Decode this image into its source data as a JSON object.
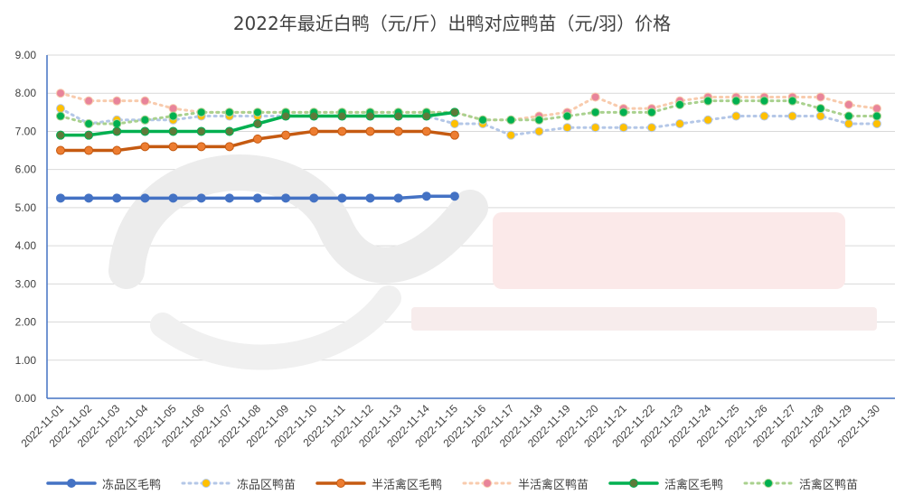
{
  "chart_data": {
    "type": "line",
    "title": "2022年最近白鸭（元/斤）出鸭对应鸭苗（元/羽）价格",
    "categories": [
      "2022-11-01",
      "2022-11-02",
      "2022-11-03",
      "2022-11-04",
      "2022-11-05",
      "2022-11-06",
      "2022-11-07",
      "2022-11-08",
      "2022-11-09",
      "2022-11-10",
      "2022-11-11",
      "2022-11-12",
      "2022-11-13",
      "2022-11-14",
      "2022-11-15",
      "2022-11-16",
      "2022-11-17",
      "2022-11-18",
      "2022-11-19",
      "2022-11-20",
      "2022-11-21",
      "2022-11-22",
      "2022-11-23",
      "2022-11-24",
      "2022-11-25",
      "2022-11-26",
      "2022-11-27",
      "2022-11-28",
      "2022-11-29",
      "2022-11-30"
    ],
    "ylim": [
      0,
      9
    ],
    "yticks": [
      "0.00",
      "1.00",
      "2.00",
      "3.00",
      "4.00",
      "5.00",
      "6.00",
      "7.00",
      "8.00",
      "9.00"
    ],
    "grid": true,
    "legend_position": "bottom",
    "series": [
      {
        "name": "冻品区毛鸭",
        "style": "solid",
        "color": "#4472c4",
        "marker": "#4472c4",
        "values": [
          5.25,
          5.25,
          5.25,
          5.25,
          5.25,
          5.25,
          5.25,
          5.25,
          5.25,
          5.25,
          5.25,
          5.25,
          5.25,
          5.3,
          5.3,
          null,
          null,
          null,
          null,
          null,
          null,
          null,
          null,
          null,
          null,
          null,
          null,
          null,
          null,
          null
        ]
      },
      {
        "name": "冻品区鸭苗",
        "style": "dotted",
        "color": "#b4c7e7",
        "marker": "#ffc000",
        "values": [
          7.6,
          7.2,
          7.3,
          7.3,
          7.3,
          7.4,
          7.4,
          7.4,
          7.4,
          7.4,
          7.4,
          7.4,
          7.4,
          7.4,
          7.2,
          7.2,
          6.9,
          7.0,
          7.1,
          7.1,
          7.1,
          7.1,
          7.2,
          7.3,
          7.4,
          7.4,
          7.4,
          7.4,
          7.2,
          7.2
        ]
      },
      {
        "name": "半活禽区毛鸭",
        "style": "solid",
        "color": "#c55a11",
        "marker": "#ed7d31",
        "values": [
          6.5,
          6.5,
          6.5,
          6.6,
          6.6,
          6.6,
          6.6,
          6.8,
          6.9,
          7.0,
          7.0,
          7.0,
          7.0,
          7.0,
          6.9,
          null,
          null,
          null,
          null,
          null,
          null,
          null,
          null,
          null,
          null,
          null,
          null,
          null,
          null,
          null
        ]
      },
      {
        "name": "半活禽区鸭苗",
        "style": "dotted",
        "color": "#f8cbad",
        "marker": "#e8849a",
        "values": [
          8.0,
          7.8,
          7.8,
          7.8,
          7.6,
          7.5,
          7.5,
          7.5,
          7.5,
          7.5,
          7.5,
          7.5,
          7.5,
          7.5,
          7.5,
          7.3,
          7.3,
          7.4,
          7.5,
          7.9,
          7.6,
          7.6,
          7.8,
          7.9,
          7.9,
          7.9,
          7.9,
          7.9,
          7.7,
          7.6
        ]
      },
      {
        "name": "活禽区毛鸭",
        "style": "solid",
        "color": "#00b050",
        "marker": "#5e7a3a",
        "values": [
          6.9,
          6.9,
          7.0,
          7.0,
          7.0,
          7.0,
          7.0,
          7.2,
          7.4,
          7.4,
          7.4,
          7.4,
          7.4,
          7.4,
          7.5,
          null,
          null,
          null,
          null,
          null,
          null,
          null,
          null,
          null,
          null,
          null,
          null,
          null,
          null,
          null
        ]
      },
      {
        "name": "活禽区鸭苗",
        "style": "dotted",
        "color": "#a9d18e",
        "marker": "#00b050",
        "values": [
          7.4,
          7.2,
          7.2,
          7.3,
          7.4,
          7.5,
          7.5,
          7.5,
          7.5,
          7.5,
          7.5,
          7.5,
          7.5,
          7.5,
          7.5,
          7.3,
          7.3,
          7.3,
          7.4,
          7.5,
          7.5,
          7.5,
          7.7,
          7.8,
          7.8,
          7.8,
          7.8,
          7.6,
          7.4,
          7.4
        ]
      }
    ]
  }
}
